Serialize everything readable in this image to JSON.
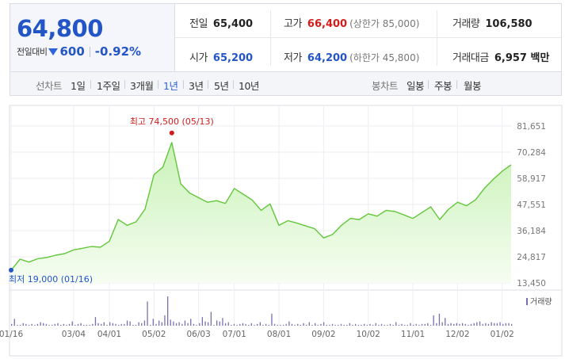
{
  "quote": {
    "price": "64,800",
    "change_label": "전일대비",
    "change_direction": "down",
    "change_value": "600",
    "change_rate": "-0.92%"
  },
  "stats": [
    {
      "label": "전일",
      "value": "65,400",
      "sub": "",
      "tone": "normal"
    },
    {
      "label": "고가",
      "value": "66,400",
      "sub": "(상한가 85,000)",
      "tone": "up"
    },
    {
      "label": "거래량",
      "value": "106,580",
      "sub": "",
      "tone": "normal"
    },
    {
      "label": "시가",
      "value": "65,200",
      "sub": "",
      "tone": "down"
    },
    {
      "label": "저가",
      "value": "64,200",
      "sub": "(하한가 45,800)",
      "tone": "down"
    },
    {
      "label": "거래대금",
      "value": "6,957 백만",
      "sub": "",
      "tone": "normal"
    }
  ],
  "line_chart": {
    "label": "선차트",
    "periods": [
      "1일",
      "1주일",
      "3개월",
      "1년",
      "3년",
      "5년",
      "10년"
    ],
    "active": "1년"
  },
  "candle_chart": {
    "label": "봉차트",
    "periods": [
      "일봉",
      "주봉",
      "월봉"
    ]
  },
  "colors": {
    "up": "#d21c1c",
    "down": "#2355c7",
    "line": "#63c63b",
    "area_top": "#c9f2b7",
    "volume": "#7a6fb0"
  },
  "chart_data": [
    {
      "type": "area",
      "title": "",
      "x": [
        "01/16",
        "01/23",
        "01/30",
        "02/06",
        "02/13",
        "02/20",
        "02/27",
        "03/04",
        "03/11",
        "03/18",
        "03/25",
        "04/01",
        "04/08",
        "04/15",
        "04/22",
        "04/29",
        "05/02",
        "05/06",
        "05/13",
        "05/20",
        "05/27",
        "06/03",
        "06/10",
        "06/17",
        "06/24",
        "07/01",
        "07/08",
        "07/15",
        "07/22",
        "07/29",
        "08/01",
        "08/05",
        "08/12",
        "08/19",
        "08/26",
        "09/02",
        "09/09",
        "09/16",
        "09/23",
        "09/30",
        "10/02",
        "10/07",
        "10/14",
        "10/21",
        "10/28",
        "11/01",
        "11/04",
        "11/11",
        "11/18",
        "11/25",
        "12/02",
        "12/09",
        "12/16",
        "12/23",
        "12/30",
        "01/02",
        "01/06"
      ],
      "values": [
        19000,
        23800,
        22500,
        24000,
        24500,
        25500,
        26200,
        27800,
        28500,
        29300,
        29000,
        31500,
        41000,
        38500,
        40000,
        45500,
        60500,
        63800,
        74500,
        56500,
        52500,
        50500,
        48500,
        49200,
        48000,
        54500,
        52000,
        49500,
        45000,
        47800,
        38500,
        40500,
        39500,
        38200,
        37000,
        33000,
        34500,
        38500,
        41500,
        41000,
        43500,
        42500,
        45000,
        44500,
        43000,
        41500,
        44000,
        46500,
        41000,
        45500,
        48500,
        47000,
        49500,
        54500,
        58500,
        62000,
        64800
      ],
      "yticks": [
        "81,651",
        "70,284",
        "58,917",
        "47,551",
        "36,184",
        "24,817",
        "13,450"
      ],
      "ylim": [
        13450,
        81651
      ],
      "xtick_labels": [
        "01/16",
        "03/04",
        "04/01",
        "05/02",
        "06/03",
        "07/01",
        "08/01",
        "09/02",
        "10/02",
        "11/01",
        "12/02",
        "01/02"
      ],
      "annotations": {
        "high": "최고 74,500 (05/13)",
        "low": "최저 19,000 (01/16)"
      },
      "grid": true
    },
    {
      "type": "bar",
      "legend": "거래량",
      "values": [
        2,
        8,
        1,
        1,
        3,
        2,
        1,
        2,
        1,
        2,
        4,
        3,
        2,
        1,
        1,
        2,
        3,
        1,
        2,
        1,
        2,
        5,
        1,
        2,
        3,
        1,
        1,
        1,
        2,
        10,
        3,
        2,
        4,
        1,
        4,
        3,
        2,
        1,
        2,
        2,
        6,
        5,
        1,
        1,
        4,
        3,
        6,
        28,
        1,
        8,
        2,
        6,
        4,
        12,
        34,
        7,
        5,
        3,
        4,
        2,
        6,
        3,
        8,
        2,
        1,
        3,
        10,
        5,
        4,
        16,
        1,
        6,
        5,
        9,
        3,
        4,
        1,
        2,
        1,
        2,
        3,
        2,
        1,
        3,
        1,
        2,
        4,
        1,
        2,
        1,
        14,
        2,
        1,
        1,
        1,
        2,
        5,
        2,
        1,
        2,
        1,
        3,
        1,
        4,
        1,
        3,
        1,
        2,
        4,
        1,
        1,
        2,
        1,
        1,
        2,
        1,
        1,
        3,
        1,
        2,
        1,
        1,
        2,
        1,
        2,
        1,
        3,
        1,
        2,
        1,
        1,
        2,
        1,
        4,
        1,
        2,
        1,
        1,
        3,
        1,
        2,
        1,
        2,
        2,
        3,
        1,
        12,
        3,
        14,
        4,
        9,
        2,
        3,
        2,
        3,
        2,
        3,
        2,
        1,
        2,
        3,
        4,
        5,
        2,
        3,
        2,
        4,
        3,
        3,
        4,
        2,
        3,
        3,
        2
      ],
      "legend_position": "top-right"
    }
  ]
}
